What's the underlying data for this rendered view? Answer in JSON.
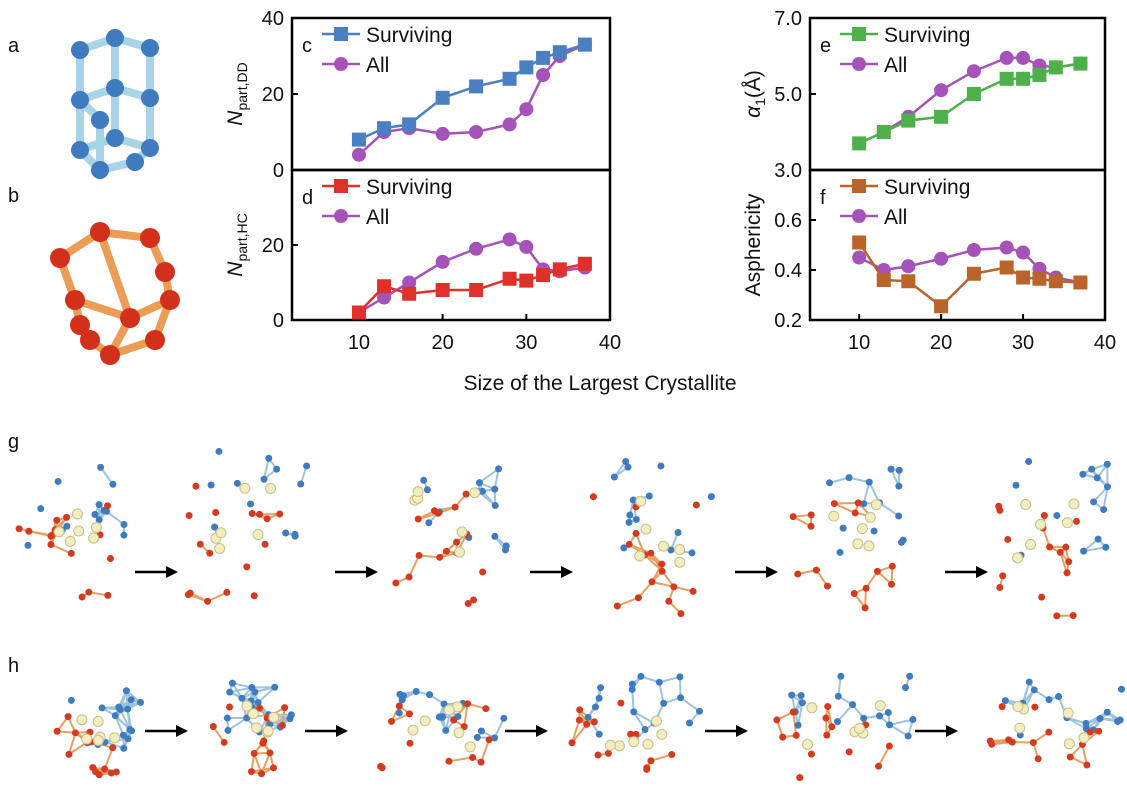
{
  "panel_labels": {
    "a": "a",
    "b": "b",
    "g": "g",
    "h": "h"
  },
  "shared_xlabel": "Size of the Largest Crystallite",
  "chart_data": [
    {
      "type": "line",
      "panel": "c",
      "ylabel": {
        "text": "N",
        "sub": "part,DD"
      },
      "x": [
        10,
        13,
        16,
        20,
        24,
        28,
        30,
        32,
        34,
        37
      ],
      "xlim": [
        2,
        40
      ],
      "ylim": [
        0,
        40
      ],
      "yticks": [
        0,
        20,
        40
      ],
      "series": [
        {
          "name": "Surviving",
          "color": "#4a7fc1",
          "marker": "square",
          "values": [
            8,
            11,
            12,
            19,
            22,
            24,
            27,
            29.5,
            31,
            33
          ]
        },
        {
          "name": "All",
          "color": "#a553b8",
          "marker": "circle",
          "values": [
            4,
            10,
            11,
            9.5,
            10,
            12,
            16,
            25,
            30,
            33
          ]
        }
      ]
    },
    {
      "type": "line",
      "panel": "d",
      "ylabel": {
        "text": "N",
        "sub": "part,HC"
      },
      "x": [
        10,
        13,
        16,
        20,
        24,
        28,
        30,
        32,
        34,
        37
      ],
      "xlim": [
        2,
        40
      ],
      "xticks": [
        10,
        20,
        30,
        40
      ],
      "ylim": [
        0,
        40
      ],
      "yticks": [
        0,
        20
      ],
      "series": [
        {
          "name": "Surviving",
          "color": "#e0302a",
          "marker": "square",
          "values": [
            2,
            9,
            7,
            8,
            8,
            11,
            10.5,
            12,
            13.5,
            15
          ]
        },
        {
          "name": "All",
          "color": "#a553b8",
          "marker": "circle",
          "values": [
            2,
            6,
            10,
            15.5,
            19,
            21.5,
            19.5,
            13.5,
            13,
            14
          ]
        }
      ]
    },
    {
      "type": "line",
      "panel": "e",
      "ylabel": {
        "text": "α",
        "sub": "1",
        "after": "(Å)"
      },
      "x": [
        10,
        13,
        16,
        20,
        24,
        28,
        30,
        32,
        34,
        37
      ],
      "xlim": [
        4,
        40
      ],
      "ylim": [
        3,
        7
      ],
      "yticks": [
        {
          "value": 3,
          "label": "3.0"
        },
        {
          "value": 5,
          "label": "5.0"
        },
        {
          "value": 7,
          "label": "7.0"
        }
      ],
      "series": [
        {
          "name": "Surviving",
          "color": "#4db04a",
          "marker": "square",
          "values": [
            3.7,
            4.0,
            4.3,
            4.4,
            5.0,
            5.4,
            5.4,
            5.5,
            5.7,
            5.8
          ]
        },
        {
          "name": "All",
          "color": "#a553b8",
          "marker": "circle",
          "values": [
            3.7,
            4.0,
            4.4,
            5.1,
            5.6,
            5.95,
            5.95,
            5.75,
            5.7,
            5.8
          ]
        }
      ]
    },
    {
      "type": "line",
      "panel": "f",
      "ylabel": {
        "text": "Asphericity"
      },
      "x": [
        10,
        13,
        16,
        20,
        24,
        28,
        30,
        32,
        34,
        37
      ],
      "xlim": [
        4,
        40
      ],
      "xticks": [
        10,
        20,
        30,
        40
      ],
      "ylim": [
        0.2,
        0.8
      ],
      "yticks": [
        0.2,
        0.4,
        0.6
      ],
      "series": [
        {
          "name": "Surviving",
          "color": "#b8642a",
          "marker": "square",
          "values": [
            0.51,
            0.36,
            0.355,
            0.255,
            0.385,
            0.41,
            0.37,
            0.365,
            0.355,
            0.35
          ]
        },
        {
          "name": "All",
          "color": "#a553b8",
          "marker": "circle",
          "values": [
            0.45,
            0.4,
            0.415,
            0.445,
            0.48,
            0.49,
            0.47,
            0.405,
            0.37,
            0.35
          ]
        }
      ]
    }
  ]
}
